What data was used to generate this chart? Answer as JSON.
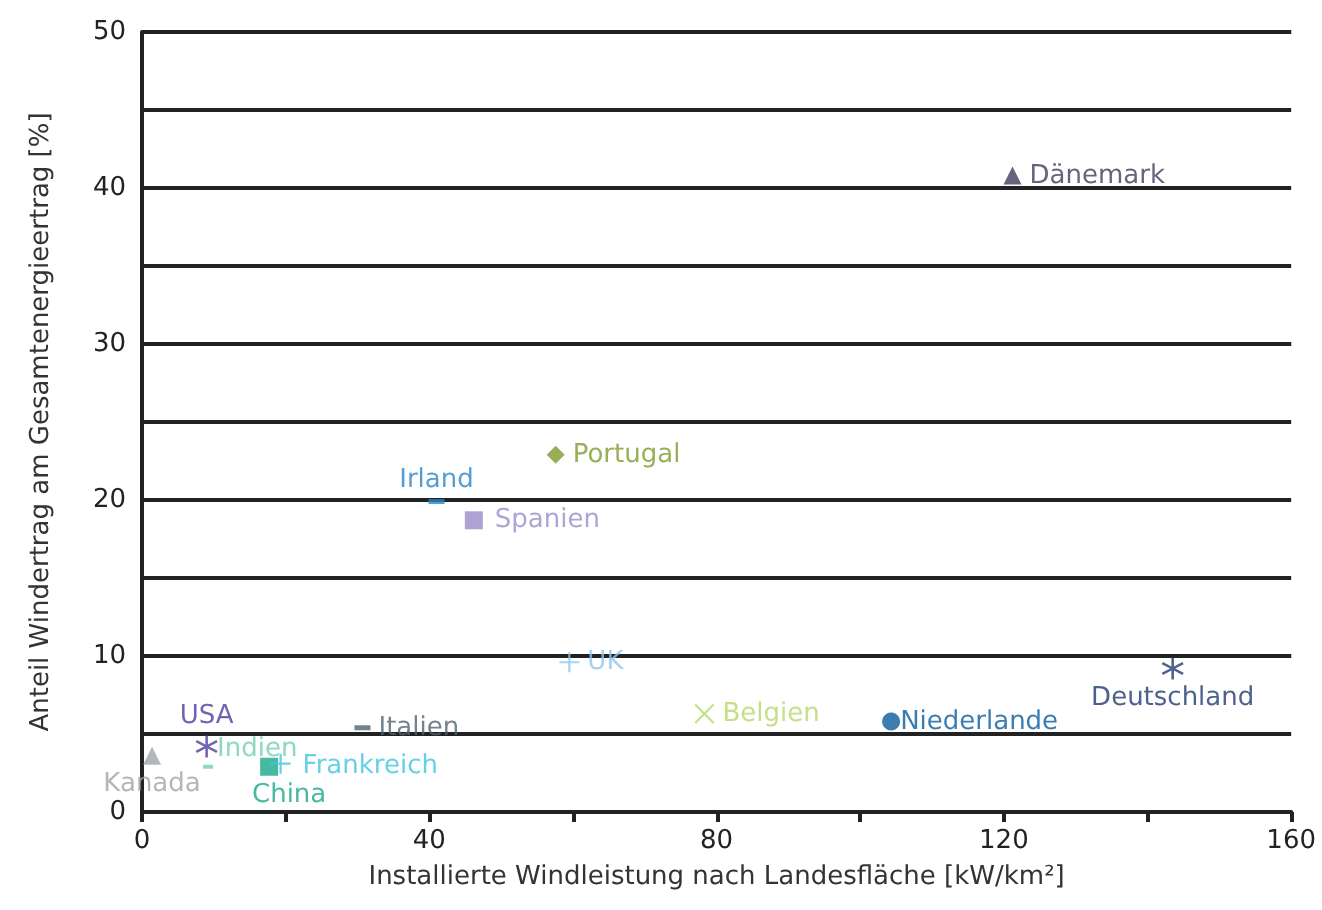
{
  "chart_data": {
    "type": "scatter",
    "xlabel": "Installierte Windleistung nach Landesfläche [kW/km²]",
    "ylabel": "Anteil Windertrag am Gesamtenergieertrag [%]",
    "xlim": [
      0,
      160
    ],
    "xticks": [
      0,
      {
        "value": 20,
        "label": null
      },
      40,
      {
        "value": 60,
        "label": null
      },
      80,
      {
        "value": 100,
        "label": null
      },
      120,
      {
        "value": 140,
        "label": null
      },
      160
    ],
    "ylim": [
      0,
      50
    ],
    "yticks": [
      0,
      {
        "value": 5,
        "label": null
      },
      10,
      {
        "value": 15,
        "label": null
      },
      20,
      {
        "value": 25,
        "label": null
      },
      30,
      {
        "value": 35,
        "label": null
      },
      40,
      {
        "value": 45,
        "label": null
      },
      50
    ],
    "grid": "y",
    "legend": false,
    "series": [
      {
        "name": "Dänemark",
        "color": "#3f3d5c",
        "marker": "triangle",
        "x": [
          121.2
        ],
        "values": [
          40.8
        ]
      },
      {
        "name": "Portugal",
        "color": "#7f9a2a",
        "marker": "diamond",
        "x": [
          57.6
        ],
        "values": [
          22.9
        ]
      },
      {
        "name": "Irland",
        "color": "#2a86c8",
        "marker": "square",
        "x": [
          41.0
        ],
        "values": [
          19.9
        ]
      },
      {
        "name": "Spanien",
        "color": "#9a8dc8",
        "marker": "square",
        "x": [
          46.2
        ],
        "values": [
          18.7
        ]
      },
      {
        "name": "UK",
        "color": "#8fc6ef",
        "marker": "plus",
        "x": [
          59.5
        ],
        "values": [
          9.6
        ]
      },
      {
        "name": "Belgien",
        "color": "#b5d86a",
        "marker": "cross",
        "x": [
          78.3
        ],
        "values": [
          6.3
        ]
      },
      {
        "name": "Niederlande",
        "color": "#0a5d9e",
        "marker": "circle",
        "x": [
          104.3
        ],
        "values": [
          5.8
        ]
      },
      {
        "name": "Deutschland",
        "color": "#1f3a6e",
        "marker": "star",
        "x": [
          143.5
        ],
        "values": [
          9.2
        ]
      },
      {
        "name": "USA",
        "color": "#4a3d9e",
        "marker": "star",
        "x": [
          9.0
        ],
        "values": [
          4.2
        ]
      },
      {
        "name": "Italien",
        "color": "#4d6470",
        "marker": "square",
        "x": [
          30.7
        ],
        "values": [
          5.4
        ]
      },
      {
        "name": "Indien",
        "color": "#6fd0b0",
        "marker": "square",
        "x": [
          9.2
        ],
        "values": [
          2.9
        ]
      },
      {
        "name": "Kanada",
        "color": "#a0a5a8",
        "marker": "triangle",
        "x": [
          1.4
        ],
        "values": [
          3.6
        ]
      },
      {
        "name": "China",
        "color": "#1aa88a",
        "marker": "square",
        "x": [
          17.7
        ],
        "values": [
          2.9
        ]
      },
      {
        "name": "Frankreich",
        "color": "#3ec4e0",
        "marker": "plus",
        "x": [
          19.3
        ],
        "values": [
          3.1
        ]
      }
    ]
  }
}
